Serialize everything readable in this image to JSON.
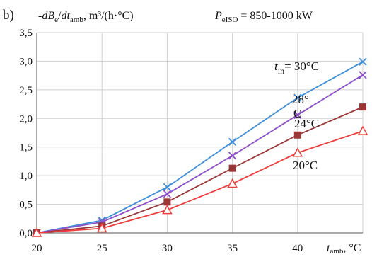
{
  "chart_data": {
    "type": "line",
    "panel_label": "b)",
    "ylabel": {
      "prefix": "-",
      "dB": "dB",
      "dB_sub": "e",
      "slash": "/",
      "dt": "dt",
      "dt_sub": "amb",
      "unit": ", m³/(h·°C)"
    },
    "power_label": {
      "P": "P",
      "P_sub": "eISO",
      "value": " = 850-1000 kW"
    },
    "xlabel": {
      "t": "t",
      "t_sub": "amb",
      "unit": ", °C"
    },
    "x": [
      20,
      25,
      30,
      35,
      40,
      45
    ],
    "xticks": [
      "20",
      "25",
      "30",
      "35",
      "40"
    ],
    "xlim": [
      20,
      45
    ],
    "yticks": [
      "0,0",
      "0,5",
      "1,0",
      "1,5",
      "2,0",
      "2,5",
      "3,0",
      "3,5"
    ],
    "ylim": [
      0,
      3.5
    ],
    "grid": true,
    "series": [
      {
        "name": "30°C",
        "values": [
          0,
          0.22,
          0.8,
          1.59,
          2.36,
          2.99
        ],
        "color": "#3f8fd8",
        "marker": "x"
      },
      {
        "name": "28°C",
        "values": [
          0,
          0.19,
          0.68,
          1.35,
          2.06,
          2.76
        ],
        "color": "#8e4fc9",
        "marker": "x"
      },
      {
        "name": "24°C",
        "values": [
          0,
          0.12,
          0.54,
          1.13,
          1.71,
          2.2
        ],
        "color": "#9a3636",
        "marker": "square"
      },
      {
        "name": "20°C",
        "values": [
          0,
          0.08,
          0.4,
          0.86,
          1.4,
          1.78
        ],
        "color": "#ef3b3b",
        "marker": "triangle"
      }
    ],
    "annotations": {
      "tin_t": "t",
      "tin_sub": "in",
      "tin_value": "= 30°C",
      "a28_line1": "28°",
      "a28_line2": "C",
      "a24": "24°C",
      "a20": "20°C"
    }
  }
}
